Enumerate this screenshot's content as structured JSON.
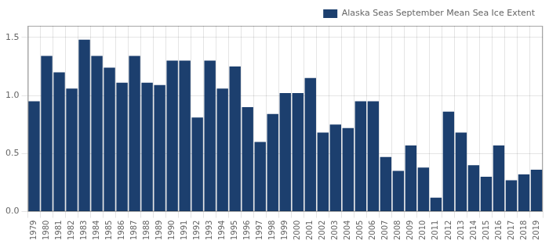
{
  "chart_data": {
    "type": "bar",
    "categories": [
      "1979",
      "1980",
      "1981",
      "1982",
      "1983",
      "1984",
      "1985",
      "1986",
      "1987",
      "1988",
      "1989",
      "1990",
      "1991",
      "1992",
      "1993",
      "1994",
      "1995",
      "1996",
      "1997",
      "1998",
      "1999",
      "2000",
      "2001",
      "2002",
      "2003",
      "2004",
      "2005",
      "2006",
      "2007",
      "2008",
      "2009",
      "2010",
      "2011",
      "2012",
      "2013",
      "2014",
      "2015",
      "2016",
      "2017",
      "2018",
      "2019"
    ],
    "series": [
      {
        "name": "Alaska Seas September Mean Sea Ice Extent",
        "color": "#1c3f6e",
        "values": [
          0.95,
          1.34,
          1.2,
          1.06,
          1.48,
          1.34,
          1.24,
          1.11,
          1.34,
          1.11,
          1.09,
          1.3,
          1.3,
          0.81,
          1.3,
          1.06,
          1.25,
          0.9,
          0.6,
          0.84,
          1.02,
          1.02,
          1.15,
          0.68,
          0.75,
          0.72,
          0.95,
          0.95,
          0.47,
          0.35,
          0.57,
          0.38,
          0.12,
          0.86,
          0.68,
          0.4,
          0.3,
          0.57,
          0.27,
          0.32,
          0.36
        ]
      }
    ],
    "ylim": [
      0,
      1.6
    ],
    "yticks": [
      {
        "value": 0,
        "label": "0.0"
      },
      0.5,
      {
        "value": 1.0,
        "label": "1.0"
      },
      1.5
    ],
    "grid": true,
    "legend": "upper right"
  }
}
